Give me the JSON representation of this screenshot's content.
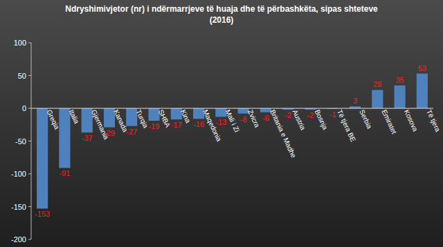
{
  "chart_data": {
    "type": "bar",
    "title": "Ndryshimivjetor (nr) i ndërmarrjeve të huaja dhe të përbashkëta, sipas shteteve",
    "subtitle": "(2016)",
    "categories": [
      "Greqia",
      "Italia",
      "Gjermania",
      "Kanada",
      "Turqia",
      "SHBA",
      "Kina",
      "Maqedonia",
      "Mali i Zi",
      "Zvicra",
      "Britania e Madhe",
      "Austria",
      "Bosnja",
      "Të tjera BE",
      "Serbia",
      "Emiratet",
      "Kosova",
      "Të tjera"
    ],
    "values": [
      -153,
      -91,
      -37,
      -29,
      -27,
      -19,
      -17,
      -16,
      -13,
      -8,
      -6,
      -2,
      -2,
      -1,
      3,
      28,
      35,
      53
    ],
    "color": "#4f81bd",
    "ylim": [
      -200,
      100
    ],
    "yticks": [
      -200,
      -150,
      -100,
      -50,
      0,
      50,
      100
    ],
    "grid": false,
    "data_labels": true
  }
}
